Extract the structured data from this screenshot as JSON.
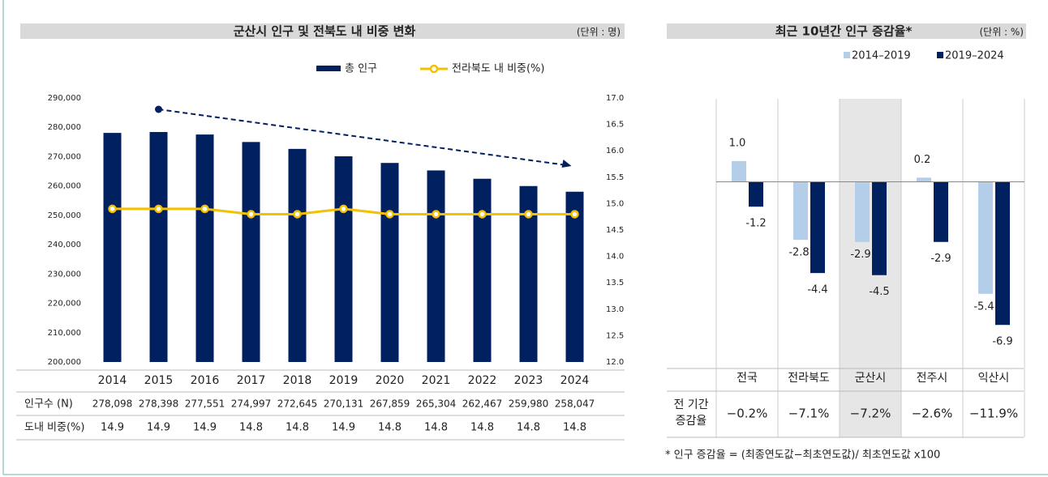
{
  "chart_data": [
    {
      "type": "bar_line",
      "title": "군산시 인구 및 전북도 내 비중 변화",
      "unit": "(단위 : 명)",
      "categories": [
        "2014",
        "2015",
        "2016",
        "2017",
        "2018",
        "2019",
        "2020",
        "2021",
        "2022",
        "2023",
        "2024"
      ],
      "series": [
        {
          "name": "총 인구",
          "color": "#002060",
          "row_label": "인구수 (N)",
          "values": [
            278098,
            278398,
            277551,
            274997,
            272645,
            270131,
            267859,
            265304,
            262467,
            259980,
            258047
          ],
          "value_labels": [
            "278,098",
            "278,398",
            "277,551",
            "274,997",
            "272,645",
            "270,131",
            "267,859",
            "265,304",
            "262,467",
            "259,980",
            "258,047"
          ]
        },
        {
          "name": "전라북도 내 비중(%)",
          "color": "#f5c000",
          "axis": "y2",
          "row_label": "도내 비중(%)",
          "values": [
            14.9,
            14.9,
            14.9,
            14.8,
            14.8,
            14.9,
            14.8,
            14.8,
            14.8,
            14.8,
            14.8
          ]
        }
      ],
      "ylim": [
        200000,
        290000
      ],
      "yticks": [
        {
          "value": 200000,
          "label": "200,000"
        },
        {
          "value": 210000,
          "label": "210,000"
        },
        {
          "value": 220000,
          "label": "220,000"
        },
        {
          "value": 230000,
          "label": "230,000"
        },
        {
          "value": 240000,
          "label": "240,000"
        },
        {
          "value": 250000,
          "label": "250,000"
        },
        {
          "value": 260000,
          "label": "260,000"
        },
        {
          "value": 270000,
          "label": "270,000"
        },
        {
          "value": 280000,
          "label": "280,000"
        },
        {
          "value": 290000,
          "label": "290,000"
        }
      ],
      "y2lim": [
        12,
        17
      ],
      "y2ticks": [
        {
          "value": 12,
          "label": "12.0"
        },
        12.5,
        {
          "value": 13,
          "label": "13.0"
        },
        13.5,
        {
          "value": 14,
          "label": "14.0"
        },
        14.5,
        {
          "value": 15,
          "label": "15.0"
        },
        15.5,
        {
          "value": 16,
          "label": "16.0"
        },
        16.5,
        {
          "value": 17,
          "label": "17.0"
        }
      ]
    },
    {
      "type": "bar",
      "title": "최근 10년간 인구 증감율*",
      "unit": "(단위 : %)",
      "categories": [
        "전국",
        "전라북도",
        "군산시",
        "전주시",
        "익산시"
      ],
      "highlight": "군산시",
      "series": [
        {
          "name": "2014–2019",
          "color": "#b4cde8",
          "values": [
            1.0,
            -2.8,
            -2.9,
            0.2,
            -5.4
          ],
          "value_labels": [
            "1.0",
            "-2.8",
            "-2.9",
            "0.2",
            "-5.4"
          ]
        },
        {
          "name": "2019–2024",
          "color": "#002060",
          "values": [
            -1.2,
            -4.4,
            -4.5,
            -2.9,
            -6.9
          ],
          "value_labels": [
            "-1.2",
            "-4.4",
            "-4.5",
            "-2.9",
            "-6.9"
          ]
        }
      ],
      "ylim": [
        -9,
        4
      ],
      "table": {
        "row_label": [
          "전 기간",
          "증감율"
        ],
        "values": [
          -0.2,
          -7.1,
          -7.2,
          -2.6,
          -11.9
        ],
        "value_labels": [
          "−0.2%",
          "−7.1%",
          "−7.2%",
          "−2.6%",
          "−11.9%"
        ]
      },
      "footnote": "* 인구 증감율 = (최종연도값−최초연도값)/ 최초연도값 x100"
    }
  ]
}
